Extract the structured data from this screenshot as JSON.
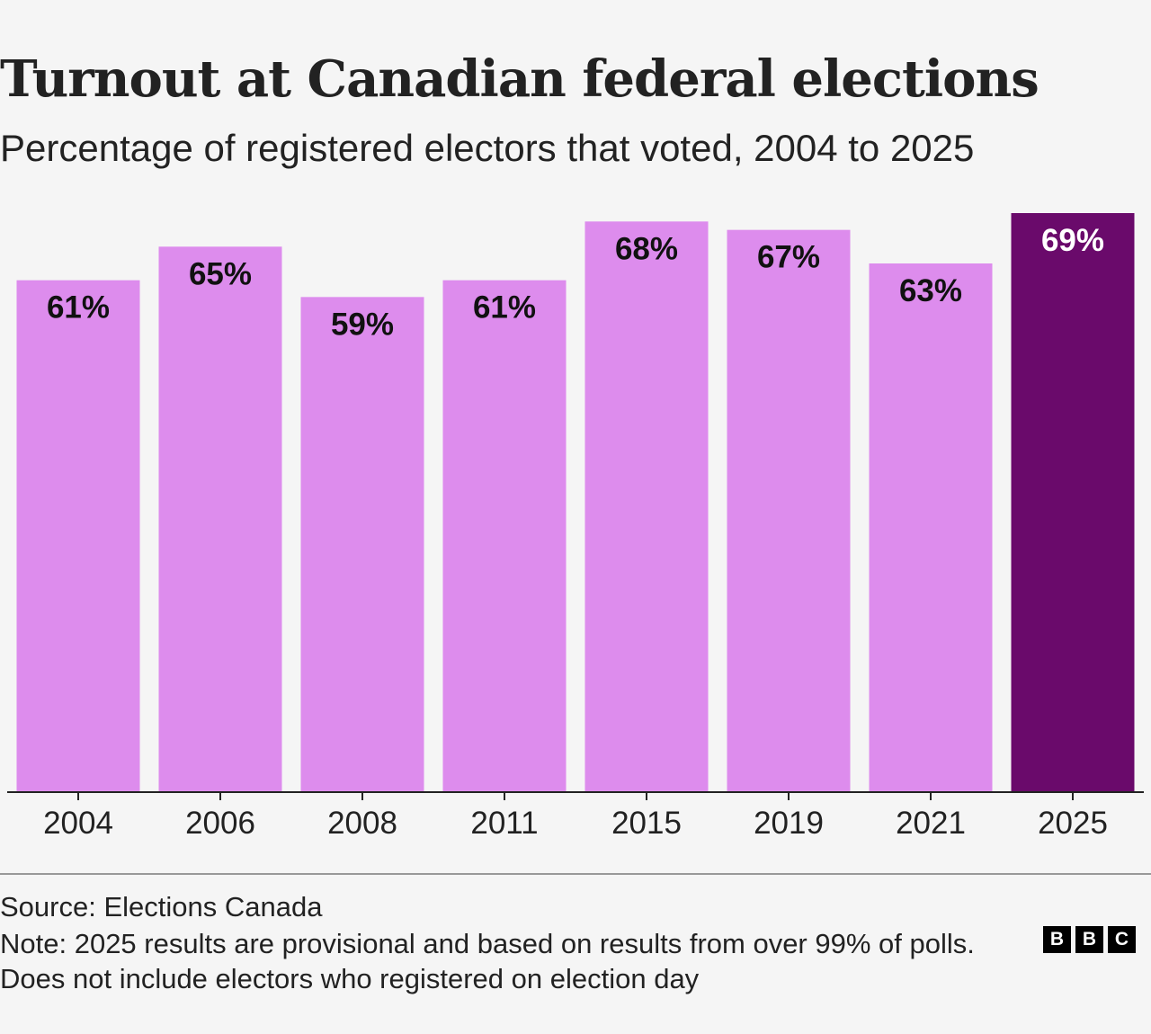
{
  "title": "Turnout at Canadian federal elections",
  "subtitle": "Percentage of registered electors that voted, 2004 to 2025",
  "chart_data": {
    "type": "bar",
    "categories": [
      "2004",
      "2006",
      "2008",
      "2011",
      "2015",
      "2019",
      "2021",
      "2025"
    ],
    "values": [
      61,
      65,
      59,
      61,
      68,
      67,
      63,
      69
    ],
    "labels": [
      "61%",
      "65%",
      "59%",
      "61%",
      "68%",
      "67%",
      "63%",
      "69%"
    ],
    "unit": "%",
    "ylim": [
      0,
      69
    ],
    "grid": false,
    "highlight_index": 7,
    "colors": {
      "bar": "#dd8ced",
      "highlight": "#6a0a6b",
      "label": "#111111",
      "highlight_label": "#ffffff",
      "axis": "#222222"
    }
  },
  "footer": {
    "source": "Source: Elections Canada",
    "note": "Note: 2025 results are provisional and based on results from over 99% of polls. Does not include electors who registered on election day",
    "logo_letters": [
      "B",
      "B",
      "C"
    ]
  }
}
